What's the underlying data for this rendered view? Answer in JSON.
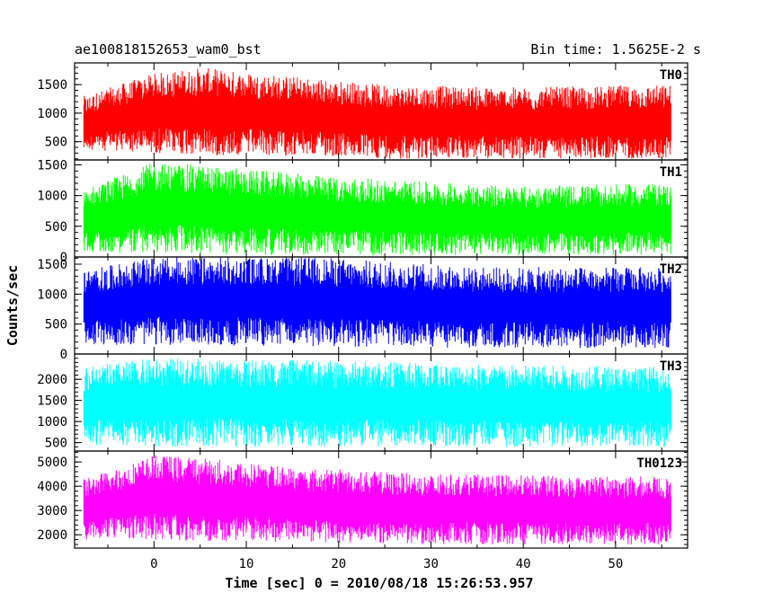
{
  "header": {
    "title": "ae100818152653_wam0_bst",
    "bin_time": "Bin time: 1.5625E-2 s"
  },
  "chart_data": {
    "type": "line",
    "xlabel": "Time [sec] 0 = 2010/08/18 15:26:53.957",
    "ylabel": "Counts/sec",
    "xlim": [
      -8.6,
      57.8
    ],
    "x_ticks": [
      0,
      10,
      20,
      30,
      40,
      50
    ],
    "x_range": [
      -7.6,
      56.0
    ],
    "panels": [
      {
        "name": "TH0",
        "color": "#ff0000",
        "ylim": [
          180,
          1880
        ],
        "yticks": [
          500,
          1000,
          1500
        ],
        "envelope": [
          {
            "x": -7.6,
            "lo": 350,
            "hi": 1300
          },
          {
            "x": 0,
            "lo": 300,
            "hi": 1700
          },
          {
            "x": 5,
            "lo": 250,
            "hi": 1800
          },
          {
            "x": 15,
            "lo": 250,
            "hi": 1650
          },
          {
            "x": 25,
            "lo": 200,
            "hi": 1500
          },
          {
            "x": 40,
            "lo": 200,
            "hi": 1450
          },
          {
            "x": 56.0,
            "lo": 200,
            "hi": 1500
          }
        ]
      },
      {
        "name": "TH1",
        "color": "#00ff00",
        "ylim": [
          0,
          1580
        ],
        "yticks": [
          0,
          500,
          1000,
          1500
        ],
        "envelope": [
          {
            "x": -7.6,
            "lo": 80,
            "hi": 1100
          },
          {
            "x": 0,
            "lo": 60,
            "hi": 1550
          },
          {
            "x": 5,
            "lo": 40,
            "hi": 1500
          },
          {
            "x": 20,
            "lo": 30,
            "hi": 1300
          },
          {
            "x": 40,
            "lo": 30,
            "hi": 1150
          },
          {
            "x": 56.0,
            "lo": 30,
            "hi": 1200
          }
        ]
      },
      {
        "name": "TH2",
        "color": "#0000ff",
        "ylim": [
          0,
          1620
        ],
        "yticks": [
          0,
          500,
          1000,
          1500
        ],
        "envelope": [
          {
            "x": -7.6,
            "lo": 150,
            "hi": 1400
          },
          {
            "x": 0,
            "lo": 150,
            "hi": 1620
          },
          {
            "x": 18,
            "lo": 120,
            "hi": 1620
          },
          {
            "x": 35,
            "lo": 100,
            "hi": 1450
          },
          {
            "x": 56.0,
            "lo": 100,
            "hi": 1450
          }
        ]
      },
      {
        "name": "TH3",
        "color": "#00ffff",
        "ylim": [
          300,
          2600
        ],
        "yticks": [
          500,
          1000,
          1500,
          2000
        ],
        "envelope": [
          {
            "x": -7.6,
            "lo": 450,
            "hi": 2300
          },
          {
            "x": 0,
            "lo": 400,
            "hi": 2500
          },
          {
            "x": 20,
            "lo": 400,
            "hi": 2450
          },
          {
            "x": 40,
            "lo": 400,
            "hi": 2350
          },
          {
            "x": 56.0,
            "lo": 400,
            "hi": 2300
          }
        ]
      },
      {
        "name": "TH0123",
        "color": "#ff00ff",
        "ylim": [
          1450,
          5450
        ],
        "yticks": [
          2000,
          3000,
          4000,
          5000
        ],
        "envelope": [
          {
            "x": -7.6,
            "lo": 1800,
            "hi": 4300
          },
          {
            "x": 0,
            "lo": 1800,
            "hi": 5300
          },
          {
            "x": 5,
            "lo": 1700,
            "hi": 5200
          },
          {
            "x": 15,
            "lo": 1700,
            "hi": 4800
          },
          {
            "x": 30,
            "lo": 1600,
            "hi": 4500
          },
          {
            "x": 56.0,
            "lo": 1600,
            "hi": 4400
          }
        ]
      }
    ]
  }
}
